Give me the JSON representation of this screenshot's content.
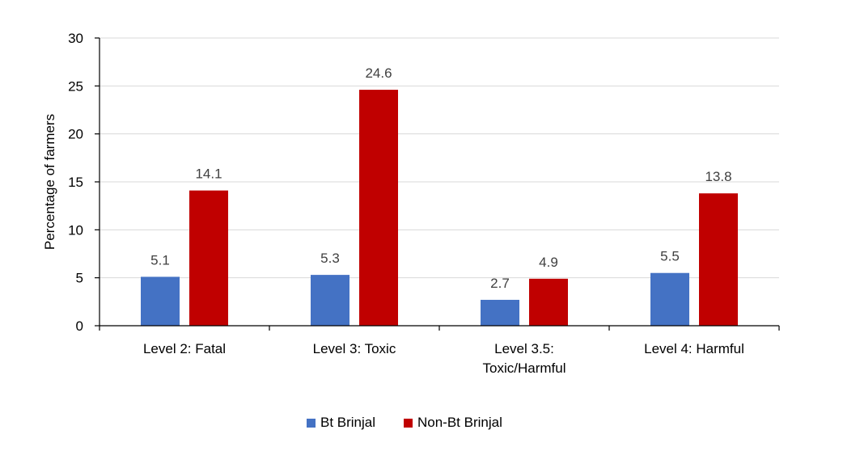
{
  "chart_data": {
    "type": "bar",
    "title": "",
    "xlabel": "",
    "ylabel": "Percentage of farmers",
    "ylim": [
      0,
      30
    ],
    "yticks": [
      0,
      5,
      10,
      15,
      20,
      25,
      30
    ],
    "grid": true,
    "legend_position": "bottom",
    "categories": [
      [
        "Level 2: Fatal"
      ],
      [
        "Level 3: Toxic"
      ],
      [
        "Level 3.5:",
        "Toxic/Harmful"
      ],
      [
        "Level 4: Harmful"
      ]
    ],
    "series": [
      {
        "name": "Bt Brinjal",
        "color": "#4472C4",
        "values": [
          5.1,
          5.3,
          2.7,
          5.5
        ],
        "labels": [
          "5.1",
          "5.3",
          "2.7",
          "5.5"
        ]
      },
      {
        "name": "Non-Bt Brinjal",
        "color": "#C00000",
        "values": [
          14.1,
          24.6,
          4.9,
          13.8
        ],
        "labels": [
          "14.1",
          "24.6",
          "4.9",
          "13.8"
        ]
      }
    ]
  }
}
